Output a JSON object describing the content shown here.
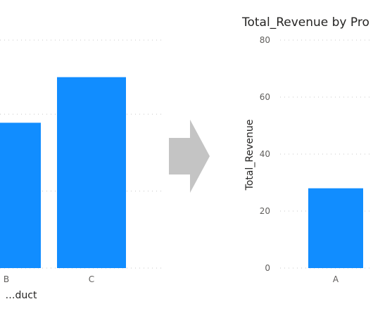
{
  "chart_data": [
    {
      "type": "bar",
      "title": "",
      "xlabel": "…duct",
      "ylabel": "",
      "ylim": [
        0,
        80
      ],
      "grid": true,
      "categories": [
        "B",
        "C"
      ],
      "series": [
        {
          "values": [
            51,
            67
          ]
        }
      ],
      "color": "#118DFF"
    },
    {
      "type": "bar",
      "title": "Total_Revenue by Pro",
      "xlabel": "",
      "ylabel": "Total_Revenue",
      "ylim": [
        0,
        80
      ],
      "y_ticks": [
        "0",
        "20",
        "40",
        "60",
        "80"
      ],
      "grid": true,
      "categories": [
        "A"
      ],
      "series": [
        {
          "values": [
            28
          ]
        }
      ],
      "color": "#118DFF"
    }
  ],
  "arrow": {
    "color": "#c4c4c4"
  }
}
